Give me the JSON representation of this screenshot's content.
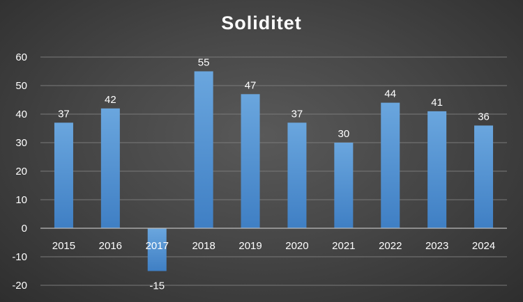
{
  "chart_data": {
    "type": "bar",
    "title": "Soliditet",
    "categories": [
      "2015",
      "2016",
      "2017",
      "2018",
      "2019",
      "2020",
      "2021",
      "2022",
      "2023",
      "2024"
    ],
    "values": [
      37,
      42,
      -15,
      55,
      47,
      37,
      30,
      44,
      41,
      36
    ],
    "data_labels": [
      "37",
      "42",
      "-15",
      "55",
      "47",
      "37",
      "30",
      "44",
      "41",
      "36"
    ],
    "ylim": [
      -20,
      60
    ],
    "yticks": [
      -20,
      -10,
      0,
      10,
      20,
      30,
      40,
      50,
      60
    ],
    "grid": true,
    "legend": "none",
    "colors": {
      "bar_top": "#6aa6de",
      "bar_bottom": "#3f7fc4",
      "grid": "#7a7a7a",
      "text": "#ffffff"
    }
  }
}
